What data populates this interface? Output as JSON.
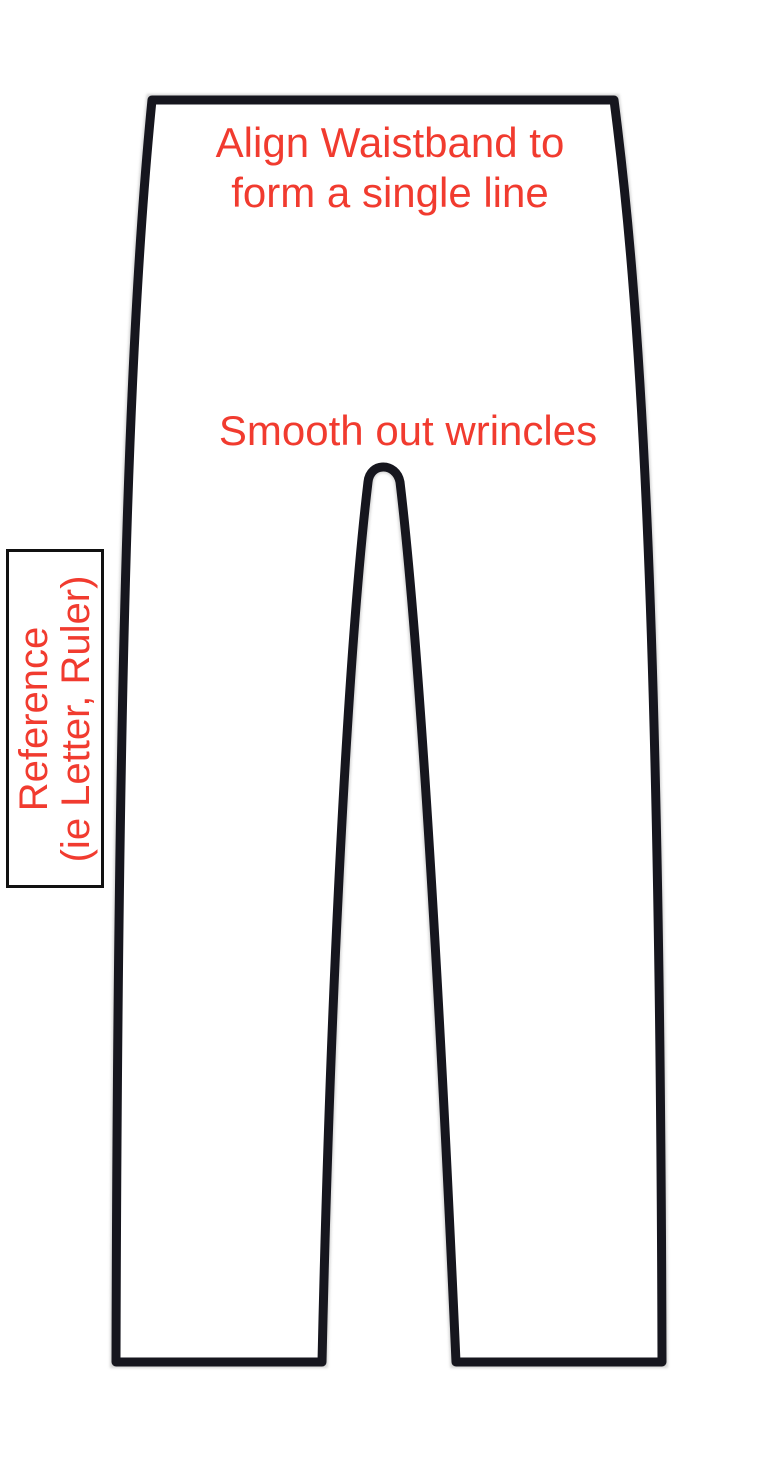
{
  "colors": {
    "annotation": "#f13b2f",
    "outline": "#16161e",
    "background": "#ffffff"
  },
  "garment": {
    "icon": "pants-outline-icon"
  },
  "annotations": {
    "waistband_line1": "Align Waistband to",
    "waistband_line2": "form a single line",
    "wrinkles": "Smooth out wrincles"
  },
  "reference": {
    "line1": "Reference",
    "line2": "(ie Letter, Ruler)"
  }
}
